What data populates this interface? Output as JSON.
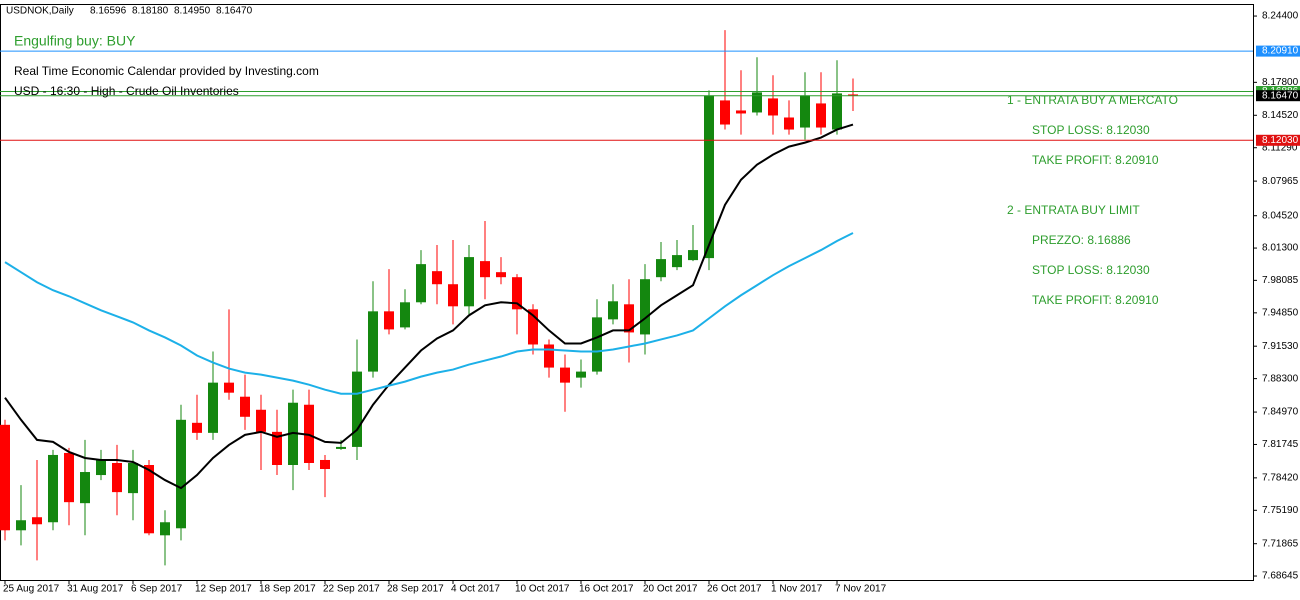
{
  "header": {
    "symbol": "USDNOK,Daily",
    "ohlc_labels": [
      "8.16596",
      "8.18180",
      "8.14950",
      "8.16470"
    ]
  },
  "chart_data": {
    "type": "candlestick",
    "categories": [
      "25 Aug 2017",
      null,
      null,
      null,
      "31 Aug 2017",
      null,
      null,
      null,
      "6 Sep 2017",
      null,
      null,
      null,
      "12 Sep 2017",
      null,
      null,
      null,
      "18 Sep 2017",
      null,
      null,
      null,
      "22 Sep 2017",
      null,
      null,
      null,
      "28 Sep 2017",
      null,
      null,
      null,
      "4 Oct 2017",
      null,
      null,
      null,
      "10 Oct 2017",
      null,
      null,
      null,
      "16 Oct 2017",
      null,
      null,
      null,
      "20 Oct 2017",
      null,
      null,
      null,
      "26 Oct 2017",
      null,
      null,
      null,
      "1 Nov 2017",
      null,
      null,
      null,
      "7 Nov 2017",
      null
    ],
    "open": [
      7.837,
      7.732,
      7.745,
      7.74,
      7.809,
      7.759,
      7.787,
      7.799,
      7.769,
      7.797,
      7.727,
      7.734,
      7.839,
      7.829,
      7.879,
      7.865,
      7.852,
      7.83,
      7.797,
      7.857,
      7.802,
      7.813,
      7.815,
      7.89,
      7.95,
      7.934,
      7.959,
      7.99,
      7.977,
      7.955,
      8.0,
      7.989,
      7.984,
      7.952,
      7.917,
      7.894,
      7.884,
      7.89,
      7.942,
      7.957,
      7.927,
      7.984,
      7.994,
      8.001,
      8.003,
      8.16,
      8.15,
      8.148,
      8.162,
      8.143,
      8.133,
      8.157,
      8.131,
      8.16596
    ],
    "high": [
      7.842,
      7.777,
      7.802,
      7.812,
      7.814,
      7.822,
      7.812,
      7.817,
      7.812,
      7.802,
      7.752,
      7.857,
      7.867,
      7.91,
      7.952,
      7.887,
      7.867,
      7.852,
      7.872,
      7.872,
      7.807,
      7.822,
      7.922,
      7.98,
      7.992,
      7.972,
      8.011,
      8.016,
      8.021,
      8.016,
      8.04,
      8.004,
      7.987,
      7.957,
      7.922,
      7.907,
      7.902,
      7.962,
      7.977,
      7.982,
      7.997,
      8.019,
      8.021,
      8.036,
      8.17,
      8.23,
      8.19,
      8.203,
      8.185,
      8.16,
      8.188,
      8.188,
      8.2,
      8.1818
    ],
    "low": [
      7.722,
      7.717,
      7.702,
      7.732,
      7.737,
      7.727,
      7.782,
      7.747,
      7.742,
      7.727,
      7.697,
      7.722,
      7.822,
      7.822,
      7.862,
      7.832,
      7.792,
      7.787,
      7.772,
      7.792,
      7.765,
      7.812,
      7.802,
      7.884,
      7.927,
      7.932,
      7.957,
      7.957,
      7.937,
      7.947,
      7.962,
      7.977,
      7.927,
      7.907,
      7.884,
      7.85,
      7.874,
      7.887,
      7.937,
      7.899,
      7.907,
      7.98,
      7.991,
      8.0,
      7.991,
      8.131,
      8.126,
      8.145,
      8.126,
      8.126,
      8.121,
      8.126,
      8.126,
      8.1495
    ],
    "close": [
      7.732,
      7.742,
      7.738,
      7.807,
      7.76,
      7.79,
      7.802,
      7.77,
      7.799,
      7.729,
      7.74,
      7.842,
      7.829,
      7.879,
      7.869,
      7.845,
      7.83,
      7.797,
      7.859,
      7.799,
      7.793,
      7.815,
      7.89,
      7.95,
      7.932,
      7.959,
      7.997,
      7.977,
      7.955,
      8.004,
      7.984,
      7.984,
      7.952,
      7.917,
      7.894,
      7.879,
      7.89,
      7.944,
      7.96,
      7.929,
      7.982,
      8.002,
      8.006,
      8.011,
      8.165,
      8.136,
      8.147,
      8.168,
      8.145,
      8.131,
      8.165,
      8.133,
      8.167,
      8.1647
    ],
    "up_color": "#14870f",
    "down_color": "#ff0000",
    "lines": [
      {
        "color": "#000000",
        "values": [
          7.864,
          7.842,
          7.822,
          7.82,
          7.81,
          7.804,
          7.802,
          7.802,
          7.8,
          7.792,
          7.782,
          7.774,
          7.787,
          7.804,
          7.817,
          7.827,
          7.83,
          7.825,
          7.829,
          7.827,
          7.82,
          7.819,
          7.832,
          7.857,
          7.877,
          7.894,
          7.911,
          7.923,
          7.931,
          7.946,
          7.956,
          7.959,
          7.958,
          7.946,
          7.931,
          7.918,
          7.918,
          7.924,
          7.931,
          7.931,
          7.943,
          7.956,
          7.966,
          7.976,
          8.016,
          8.056,
          8.081,
          8.096,
          8.106,
          8.114,
          8.118,
          8.123,
          8.131,
          8.136
        ]
      },
      {
        "color": "#1cb0e8",
        "values": [
          7.999,
          7.989,
          7.979,
          7.971,
          7.965,
          7.958,
          7.951,
          7.945,
          7.939,
          7.931,
          7.924,
          7.916,
          7.906,
          7.899,
          7.893,
          7.889,
          7.887,
          7.884,
          7.881,
          7.877,
          7.872,
          7.868,
          7.868,
          7.872,
          7.876,
          7.88,
          7.885,
          7.889,
          7.892,
          7.897,
          7.901,
          7.905,
          7.91,
          7.912,
          7.912,
          7.911,
          7.91,
          7.91,
          7.912,
          7.915,
          7.918,
          7.922,
          7.926,
          7.931,
          7.943,
          7.955,
          7.966,
          7.976,
          7.986,
          7.995,
          8.003,
          8.011,
          8.02,
          8.028
        ]
      }
    ],
    "ylim": [
      7.6825,
      8.256
    ],
    "yticks": [
      {
        "value": 8.244,
        "label": "8.24400"
      },
      {
        "value": 8.178,
        "label": "8.17800"
      },
      {
        "value": 8.1452,
        "label": "8.14520"
      },
      {
        "value": 8.1129,
        "label": "8.11290"
      },
      {
        "value": 8.07965,
        "label": "8.07965"
      },
      {
        "value": 8.0452,
        "label": "8.04520"
      },
      {
        "value": 8.013,
        "label": "8.01300"
      },
      {
        "value": 7.98085,
        "label": "7.98085"
      },
      {
        "value": 7.9485,
        "label": "7.94850"
      },
      {
        "value": 7.9153,
        "label": "7.91530"
      },
      {
        "value": 7.883,
        "label": "7.88300"
      },
      {
        "value": 7.8497,
        "label": "7.84970"
      },
      {
        "value": 7.81745,
        "label": "7.81745"
      },
      {
        "value": 7.7842,
        "label": "7.78420"
      },
      {
        "value": 7.7519,
        "label": "7.75190"
      },
      {
        "value": 7.71865,
        "label": "7.71865"
      },
      {
        "value": 7.68645,
        "label": "7.68645"
      }
    ],
    "levels": [
      {
        "value": 8.2091,
        "label": "8.20910",
        "color": "#1e90ff",
        "label_fill": "#1e90ff"
      },
      {
        "value": 8.16886,
        "label": "8.16886",
        "color": "#2e9e2e",
        "label_fill": "#2e9e2e"
      },
      {
        "value": 8.1647,
        "label": "8.16470",
        "color": "#2e9e2e",
        "label_fill": "#000000"
      },
      {
        "value": 8.1203,
        "label": "8.12030",
        "color": "#e01010",
        "label_fill": "#e01010"
      }
    ],
    "annotations": [
      {
        "text": "Engulfing buy: BUY",
        "color": "#2e9e2e"
      },
      {
        "text": "Real Time Economic Calendar provided by Investing.com",
        "color": "#000000"
      },
      {
        "text": "USD - 16:30 - High - Crude Oil Inventories",
        "color": "#000000"
      },
      {
        "text": "1 - ENTRATA BUY A MERCATO",
        "color": "#2e9e2e"
      },
      {
        "text": "STOP LOSS: 8.12030",
        "color": "#2e9e2e"
      },
      {
        "text": "TAKE PROFIT: 8.20910",
        "color": "#2e9e2e"
      },
      {
        "text": "2 - ENTRATA BUY LIMIT",
        "color": "#2e9e2e"
      },
      {
        "text": "PREZZO: 8.16886",
        "color": "#2e9e2e"
      },
      {
        "text": "STOP LOSS: 8.12030",
        "color": "#2e9e2e"
      },
      {
        "text": "TAKE PROFIT: 8.20910",
        "color": "#2e9e2e"
      }
    ]
  }
}
